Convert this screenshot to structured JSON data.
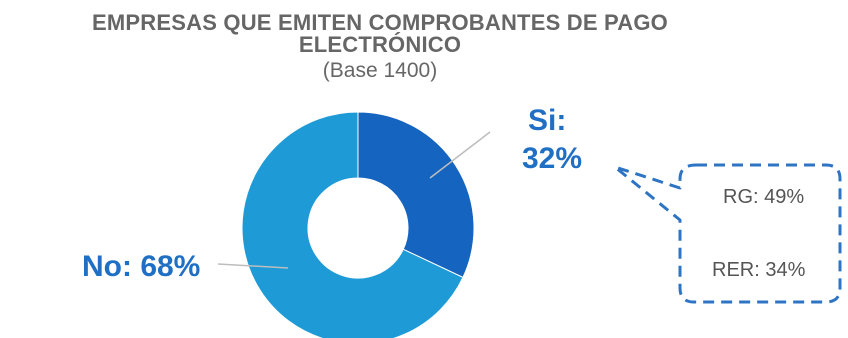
{
  "chart_data": {
    "type": "pie",
    "title_line1": "EMPRESAS QUE EMITEN COMPROBANTES DE PAGO",
    "title_line2": "ELECTRÓNICO",
    "subtitle": "(Base 1400)",
    "slices": [
      {
        "name": "Si",
        "label_line1": "Si:",
        "label_line2": "32%",
        "value": 32,
        "color": "#1565c0"
      },
      {
        "name": "No",
        "label": "No: 68%",
        "value": 68,
        "color": "#1e9bd7"
      }
    ],
    "callout": {
      "items": [
        "RG: 49%",
        "RER: 34%"
      ],
      "border_color": "#2e74c4"
    },
    "label_color": "#1f6fc4",
    "title_color": "#666666"
  }
}
